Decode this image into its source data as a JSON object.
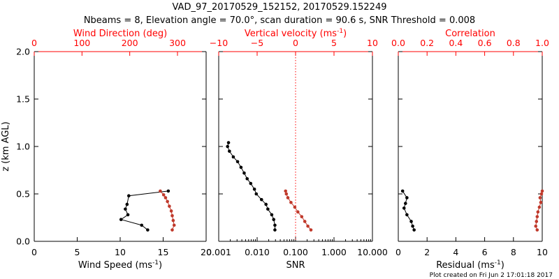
{
  "header": {
    "title_line1": "VAD_97_20170529_152152, 20170529.152249",
    "title_line2": "Nbeams = 8, Elevation angle = 70.0°, scan duration = 90.6 s, SNR Threshold = 0.008"
  },
  "footer": {
    "plot_created": "Plot created on Fri Jun  2 17:01:18 2017"
  },
  "colors": {
    "axis": "#000000",
    "top_axis": "#ff0000",
    "primary_series": "#000000",
    "secondary_series": "#c0392b"
  },
  "chart_data": [
    {
      "type": "line",
      "ylabel": "z (km AGL)",
      "ylim": [
        0.0,
        2.0
      ],
      "yticks": [
        "0.0",
        "0.5",
        "1.0",
        "1.5",
        "2.0"
      ],
      "xlabel": "Wind Speed (ms",
      "xlabel_sup": "-1",
      "xlabel_tail": ")",
      "xlim": [
        0,
        20
      ],
      "xticks": [
        "0",
        "5",
        "10",
        "15",
        "20"
      ],
      "top_label": "Wind Direction (deg)",
      "top_xlim": [
        0,
        360
      ],
      "top_xticks": [
        "0",
        "100",
        "200",
        "300"
      ],
      "series": [
        {
          "axis": "bottom",
          "x": [
            13.2,
            12.5,
            10.1,
            10.9,
            10.6,
            10.8,
            11.0,
            15.6
          ],
          "y": [
            0.12,
            0.17,
            0.23,
            0.28,
            0.34,
            0.39,
            0.48,
            0.53
          ]
        },
        {
          "axis": "top",
          "x": [
            289,
            293,
            291,
            289,
            287,
            283,
            279,
            275,
            271,
            264
          ],
          "y": [
            0.12,
            0.17,
            0.22,
            0.27,
            0.32,
            0.37,
            0.42,
            0.46,
            0.49,
            0.53
          ]
        }
      ]
    },
    {
      "type": "line",
      "xscale": "log",
      "xlabel": "SNR",
      "xlim": [
        0.001,
        10.0
      ],
      "xticks": [
        "0.001",
        "0.010",
        "0.100",
        "1.000",
        "10.000"
      ],
      "top_label": "Vertical velocity (ms",
      "top_label_sup": "-1",
      "top_label_tail": ")",
      "top_xlim": [
        -10,
        10
      ],
      "top_xticks": [
        "−10",
        "−5",
        "0",
        "5",
        "10"
      ],
      "top_zero_line": 0,
      "series": [
        {
          "axis": "bottom",
          "x": [
            0.029,
            0.029,
            0.027,
            0.024,
            0.019,
            0.017,
            0.013,
            0.0095,
            0.0085,
            0.0068,
            0.0055,
            0.0046,
            0.0038,
            0.0031,
            0.0024,
            0.0019,
            0.0017,
            0.0018
          ],
          "y": [
            0.12,
            0.17,
            0.23,
            0.28,
            0.34,
            0.39,
            0.44,
            0.5,
            0.55,
            0.61,
            0.66,
            0.72,
            0.78,
            0.84,
            0.89,
            0.95,
            1.0,
            1.04
          ]
        },
        {
          "axis": "top",
          "x": [
            2.0,
            1.6,
            1.2,
            0.8,
            0.3,
            -0.1,
            -0.6,
            -1.0,
            -1.2,
            -1.3
          ],
          "y": [
            0.12,
            0.16,
            0.21,
            0.26,
            0.31,
            0.36,
            0.41,
            0.46,
            0.5,
            0.53
          ]
        }
      ]
    },
    {
      "type": "line",
      "xlabel": "Residual (ms",
      "xlabel_sup": "-1",
      "xlabel_tail": ")",
      "xlim": [
        0,
        10
      ],
      "xticks": [
        "0",
        "2",
        "4",
        "6",
        "8",
        "10"
      ],
      "top_label": "Correlation",
      "top_xlim": [
        0.0,
        1.0
      ],
      "top_xticks": [
        "0.0",
        "0.2",
        "0.4",
        "0.6",
        "0.8",
        "1.0"
      ],
      "series": [
        {
          "axis": "bottom",
          "x": [
            1.1,
            1.0,
            0.9,
            0.6,
            0.4,
            0.5,
            0.6,
            0.3
          ],
          "y": [
            0.12,
            0.16,
            0.21,
            0.28,
            0.35,
            0.4,
            0.46,
            0.53
          ]
        },
        {
          "axis": "top",
          "x": [
            0.965,
            0.955,
            0.96,
            0.965,
            0.97,
            0.98,
            0.99,
            0.985,
            0.995,
            1.0
          ],
          "y": [
            0.12,
            0.16,
            0.21,
            0.26,
            0.31,
            0.36,
            0.41,
            0.46,
            0.5,
            0.53
          ]
        }
      ]
    }
  ]
}
